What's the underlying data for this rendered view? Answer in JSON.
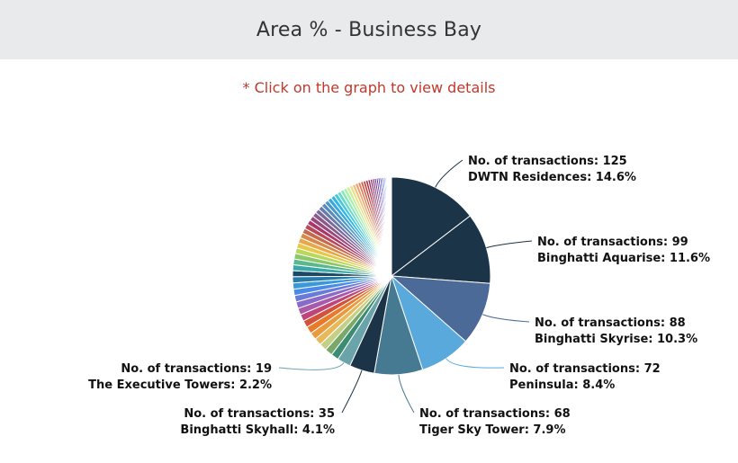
{
  "header": {
    "title": "Area % - Business Bay"
  },
  "hint": {
    "text": "* Click on the graph to view details"
  },
  "chart_data": {
    "type": "pie",
    "title": "Area % - Business Bay",
    "slices": [
      {
        "name": "DWTN Residences",
        "transactions": 125,
        "percent": 14.6,
        "color": "#1c3448",
        "label_line1": "No. of transactions: 125",
        "label_line2": "DWTN Residences: 14.6%"
      },
      {
        "name": "Binghatti Aquarise",
        "transactions": 99,
        "percent": 11.6,
        "color": "#1c3448",
        "label_line1": "No. of transactions: 99",
        "label_line2": "Binghatti Aquarise: 11.6%"
      },
      {
        "name": "Binghatti Skyrise",
        "transactions": 88,
        "percent": 10.3,
        "color": "#4c6a98",
        "label_line1": "No. of transactions: 88",
        "label_line2": "Binghatti Skyrise: 10.3%"
      },
      {
        "name": "Peninsula",
        "transactions": 72,
        "percent": 8.4,
        "color": "#5aa9dc",
        "label_line1": "No. of transactions: 72",
        "label_line2": "Peninsula: 8.4%"
      },
      {
        "name": "Tiger Sky Tower",
        "transactions": 68,
        "percent": 7.9,
        "color": "#467a92",
        "label_line1": "No. of transactions: 68",
        "label_line2": "Tiger Sky Tower: 7.9%"
      },
      {
        "name": "Binghatti Skyhall",
        "transactions": 35,
        "percent": 4.1,
        "color": "#1c3448",
        "label_line1": "No. of transactions: 35",
        "label_line2": "Binghatti Skyhall: 4.1%"
      },
      {
        "name": "The Executive Towers",
        "transactions": 19,
        "percent": 2.2,
        "color": "#6aa3a9",
        "label_line1": "No. of transactions: 19",
        "label_line2": "The Executive Towers: 2.2%"
      }
    ],
    "minor_slice_colors": [
      "#3b8c72",
      "#7aa86a",
      "#c5cf86",
      "#e8b95a",
      "#e89a3c",
      "#e87a2c",
      "#d4523a",
      "#c0447a",
      "#a85aa8",
      "#8a6ac8",
      "#6a7ad8",
      "#4a8ae8",
      "#3a9ad8",
      "#2a7aa8",
      "#1a4a68",
      "#3aa8a8",
      "#5ab88a",
      "#8ac86a",
      "#b8d85a",
      "#e8c84a",
      "#e8a84a",
      "#d8884a",
      "#c8684a",
      "#b8485a",
      "#a8386a",
      "#98487a",
      "#885a8a",
      "#786a9a",
      "#687aaa",
      "#588aba",
      "#4898ca",
      "#3aa8da",
      "#2ab8ea",
      "#4ac8da",
      "#6ad8ca",
      "#8ae8ba",
      "#aaf0aa",
      "#caf09a",
      "#eae08a",
      "#f0c07a",
      "#f0a06a",
      "#e0805a",
      "#d0604a",
      "#c0403a",
      "#b0304a",
      "#a0305a",
      "#90306a",
      "#80307a",
      "#70308a",
      "#60309a",
      "#5030aa",
      "#4030ba",
      "#3040ca",
      "#3050da",
      "#3060ea",
      "#4070ea",
      "#5080ea",
      "#6090ea",
      "#70a0ea",
      "#80b0ea",
      "#90c0ea",
      "#a0d0ea",
      "#b0e0ea",
      "#c0e8ea",
      "#d0f0ea"
    ]
  }
}
